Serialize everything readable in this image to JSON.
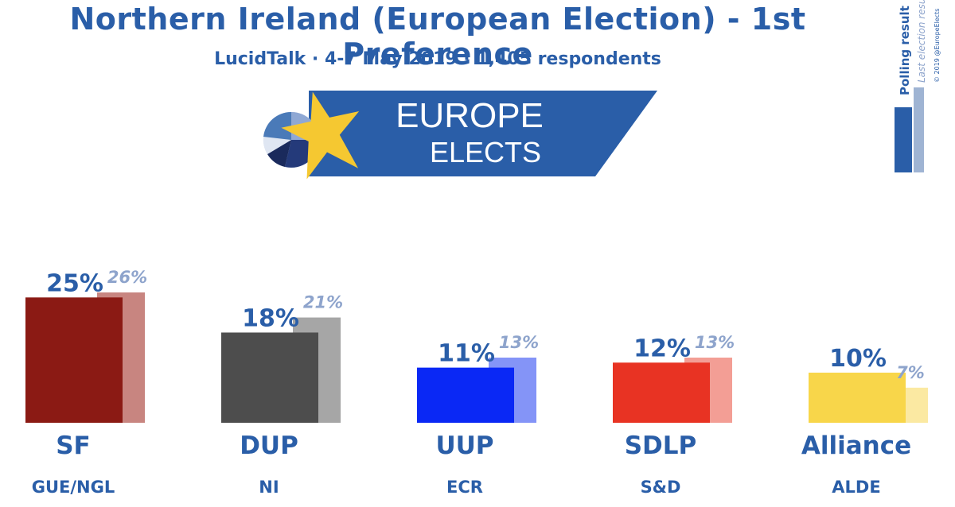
{
  "header": {
    "title": "Northern Ireland (European Election) - 1st Preference",
    "subtitle": "LucidTalk · 4-7 May 2019 · 1,405 respondents"
  },
  "logo": {
    "line1": "EUROPE",
    "line2": "ELECTS"
  },
  "legend": {
    "polling": "Polling result",
    "last": "Last election result",
    "credit": "© 2019 @EuropeElects",
    "polling_color": "#2a5ea8",
    "last_color": "#9fb4d3"
  },
  "chart_data": {
    "type": "bar",
    "title": "Northern Ireland (European Election) - 1st Preference",
    "categories": [
      "SF",
      "DUP",
      "UUP",
      "SDLP",
      "Alliance"
    ],
    "groups": [
      "GUE/NGL",
      "NI",
      "ECR",
      "S&D",
      "ALDE"
    ],
    "series": [
      {
        "name": "Polling result",
        "values": [
          25,
          18,
          11,
          12,
          10
        ]
      },
      {
        "name": "Last election result",
        "values": [
          26,
          21,
          13,
          13,
          7
        ]
      }
    ],
    "value_labels": [
      "25%",
      "18%",
      "11%",
      "12%",
      "10%"
    ],
    "previous_labels": [
      "26%",
      "21%",
      "13%",
      "13%",
      "7%"
    ],
    "colors": [
      "#8b1a14",
      "#4d4d4d",
      "#0a28f5",
      "#e83323",
      "#f8d64a"
    ],
    "previous_colors": [
      "#c88580",
      "#a6a6a6",
      "#8494f7",
      "#f39e95",
      "#fbe9a2"
    ],
    "label_color": "#2a5ea8",
    "previous_label_color": "#8ea4cc",
    "ylim": [
      0,
      26
    ]
  }
}
